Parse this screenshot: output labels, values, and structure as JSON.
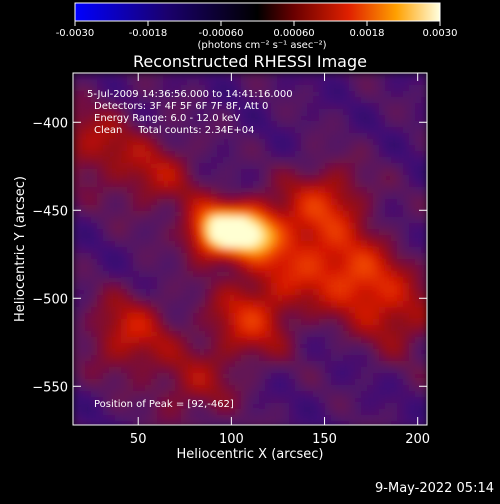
{
  "colorbar": {
    "tick_labels": [
      "-0.0030",
      "-0.0018",
      "-0.00060",
      "0.00060",
      "0.0018",
      "0.0030"
    ],
    "range": [
      -0.003,
      0.003
    ],
    "unit_label": "(photons cm⁻² s⁻¹ asec⁻²)"
  },
  "chart_data": {
    "type": "heatmap",
    "title": "Reconstructed RHESSI Image",
    "xlabel": "Heliocentric X (arcsec)",
    "ylabel": "Heliocentric Y (arcsec)",
    "xlim": [
      15,
      205
    ],
    "ylim": [
      -572,
      -372
    ],
    "x_ticks": [
      50,
      100,
      150,
      200
    ],
    "y_ticks": [
      -400,
      -450,
      -500,
      -550
    ],
    "peak": {
      "x": 92,
      "y": -462
    },
    "blobs": [
      {
        "x": 92,
        "y": -462,
        "w": 1.0
      },
      {
        "x": 112,
        "y": -462,
        "w": 0.85
      },
      {
        "x": 150,
        "y": -447,
        "w": 0.5
      },
      {
        "x": 168,
        "y": -488,
        "w": 0.55
      },
      {
        "x": 45,
        "y": -520,
        "w": 0.45
      },
      {
        "x": 110,
        "y": -512,
        "w": 0.5
      },
      {
        "x": 25,
        "y": -412,
        "w": 0.35
      },
      {
        "x": 135,
        "y": -480,
        "w": 0.4
      },
      {
        "x": 60,
        "y": -430,
        "w": 0.35
      },
      {
        "x": 190,
        "y": -510,
        "w": 0.35
      },
      {
        "x": 80,
        "y": -550,
        "w": 0.3
      }
    ],
    "annotations": [
      "5-Jul-2009 14:36:56.000 to 14:41:16.000",
      "Detectors: 3F 4F 5F 6F 7F 8F, Att 0",
      "Energy Range: 6.0 - 12.0 keV",
      "Clean     Total counts: 2.34E+04"
    ],
    "peak_label": "Position of Peak = [92,-462]"
  },
  "footer": {
    "timestamp": "9-May-2022 05:14"
  }
}
